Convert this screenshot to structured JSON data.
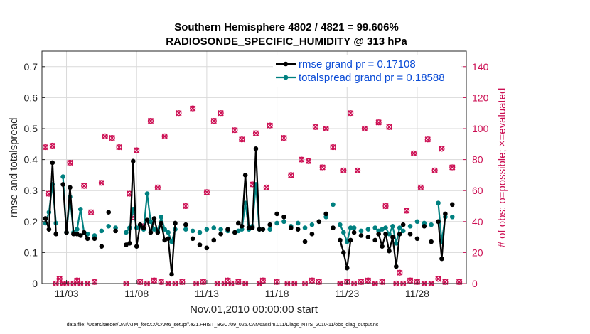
{
  "chart_data": {
    "type": "line",
    "title_line1": "Southern Hemisphere 4802 / 4821 = 99.606%",
    "title_line2": "RADIOSONDE_SPECIFIC_HUMIDITY @ 313 hPa",
    "xlabel": "Nov.01,2010 00:00:00 start",
    "ylabel_left": "rmse and totalspread",
    "ylabel_right": "# of obs: o=possible; ×=evaluated",
    "footnote": "data file: /Users/raeder/DAI/ATM_forcXX/CAM6_setup/f.e21.FHIST_BGC.f09_025.CAM6assim.011/Diags_NTrS_2010-11/obs_diag_output.nc",
    "x_range": [
      1.25,
      31.5
    ],
    "x_ticks": [
      {
        "value": 3,
        "label": "11/03"
      },
      {
        "value": 8,
        "label": "11/08"
      },
      {
        "value": 13,
        "label": "11/13"
      },
      {
        "value": 18,
        "label": "11/18"
      },
      {
        "value": 23,
        "label": "11/23"
      },
      {
        "value": 28,
        "label": "11/28"
      }
    ],
    "y_left": {
      "range": [
        0,
        0.75
      ],
      "ticks": [
        "0",
        "0.1",
        "0.2",
        "0.3",
        "0.4",
        "0.5",
        "0.6",
        "0.7"
      ],
      "tick_values": [
        0,
        0.1,
        0.2,
        0.3,
        0.4,
        0.5,
        0.6,
        0.7
      ]
    },
    "y_right": {
      "range": [
        0,
        150
      ],
      "ticks": [
        "0",
        "20",
        "40",
        "60",
        "80",
        "100",
        "120",
        "140"
      ],
      "tick_values": [
        0,
        20,
        40,
        60,
        80,
        100,
        120,
        140
      ]
    },
    "legend": {
      "placement": "top-right",
      "entries": [
        {
          "label": "rmse grand pr = 0.17108",
          "color": "#000000"
        },
        {
          "label": "totalspread grand pr = 0.18588",
          "color": "#008080"
        }
      ]
    },
    "series": [
      {
        "name": "rmse",
        "color": "#000000",
        "points": [
          [
            1.5,
            0.21
          ],
          [
            1.75,
            0.175
          ],
          [
            2.0,
            0.39
          ],
          [
            2.25,
            0.16
          ],
          [
            2.75,
            0.32
          ],
          [
            3.0,
            0.165
          ],
          [
            3.25,
            0.31
          ],
          [
            3.5,
            0.16
          ],
          [
            3.75,
            0.16
          ],
          [
            4.0,
            0.155
          ],
          [
            4.25,
            0.165
          ],
          [
            4.5,
            0.145
          ],
          [
            5.0,
            0.145
          ],
          [
            7.25,
            0.125
          ],
          [
            7.5,
            0.13
          ],
          [
            7.75,
            0.395
          ],
          [
            8.0,
            0.12
          ],
          [
            8.25,
            0.19
          ],
          [
            8.5,
            0.18
          ],
          [
            8.75,
            0.205
          ],
          [
            9.0,
            0.165
          ],
          [
            9.25,
            0.21
          ],
          [
            9.5,
            0.165
          ],
          [
            9.75,
            0.195
          ],
          [
            10.0,
            0.14
          ],
          [
            10.25,
            0.145
          ],
          [
            10.5,
            0.03
          ],
          [
            10.75,
            0.195
          ],
          [
            15.25,
            0.195
          ],
          [
            15.5,
            0.185
          ],
          [
            15.75,
            0.35
          ],
          [
            16.0,
            0.18
          ],
          [
            16.25,
            0.18
          ],
          [
            16.5,
            0.435
          ],
          [
            16.75,
            0.175
          ],
          [
            17.0,
            0.175
          ],
          [
            22.5,
            0.14
          ],
          [
            22.75,
            0.1
          ],
          [
            23.0,
            0.05
          ],
          [
            23.25,
            0.14
          ],
          [
            25.25,
            0.16
          ],
          [
            25.5,
            0.12
          ],
          [
            25.75,
            0.16
          ],
          [
            26.0,
            0.105
          ],
          [
            26.25,
            0.15
          ],
          [
            26.5,
            0.055
          ],
          [
            26.75,
            0.16
          ],
          [
            29.5,
            0.2
          ],
          [
            29.75,
            0.08
          ],
          [
            30.0,
            0.225
          ]
        ],
        "markers_only": [
          [
            5.5,
            0.12
          ],
          [
            6.0,
            0.23
          ],
          [
            6.5,
            0.17
          ],
          [
            11.5,
            0.19
          ],
          [
            12.0,
            0.145
          ],
          [
            12.5,
            0.125
          ],
          [
            13.0,
            0.115
          ],
          [
            13.5,
            0.14
          ],
          [
            14.0,
            0.16
          ],
          [
            14.5,
            0.175
          ],
          [
            15.0,
            0.165
          ],
          [
            17.5,
            0.19
          ],
          [
            18.0,
            0.225
          ],
          [
            18.5,
            0.215
          ],
          [
            19.0,
            0.18
          ],
          [
            19.5,
            0.175
          ],
          [
            20.0,
            0.135
          ],
          [
            20.5,
            0.16
          ],
          [
            21.0,
            0.2
          ],
          [
            21.5,
            0.225
          ],
          [
            22.0,
            0.18
          ],
          [
            23.5,
            0.165
          ],
          [
            24.0,
            0.155
          ],
          [
            24.5,
            0.15
          ],
          [
            25.0,
            0.14
          ],
          [
            27.0,
            0.19
          ],
          [
            27.5,
            0.16
          ],
          [
            28.0,
            0.145
          ],
          [
            28.5,
            0.185
          ],
          [
            29.0,
            0.135
          ],
          [
            30.5,
            0.255
          ]
        ]
      },
      {
        "name": "totalspread",
        "color": "#008080",
        "points": [
          [
            1.5,
            0.195
          ],
          [
            1.75,
            0.23
          ],
          [
            2.0,
            0.32
          ],
          [
            2.25,
            0.195
          ],
          [
            2.75,
            0.345
          ],
          [
            3.0,
            0.165
          ],
          [
            3.25,
            0.28
          ],
          [
            3.5,
            0.165
          ],
          [
            3.75,
            0.175
          ],
          [
            4.0,
            0.24
          ],
          [
            4.25,
            0.165
          ],
          [
            4.5,
            0.16
          ],
          [
            5.0,
            0.155
          ],
          [
            7.25,
            0.165
          ],
          [
            7.5,
            0.18
          ],
          [
            7.75,
            0.24
          ],
          [
            8.0,
            0.18
          ],
          [
            8.25,
            0.185
          ],
          [
            8.5,
            0.175
          ],
          [
            8.75,
            0.29
          ],
          [
            9.0,
            0.2
          ],
          [
            9.25,
            0.175
          ],
          [
            9.5,
            0.17
          ],
          [
            9.75,
            0.215
          ],
          [
            10.0,
            0.175
          ],
          [
            10.25,
            0.165
          ],
          [
            10.5,
            0.135
          ],
          [
            10.75,
            0.175
          ],
          [
            15.25,
            0.17
          ],
          [
            15.5,
            0.175
          ],
          [
            15.75,
            0.26
          ],
          [
            16.0,
            0.175
          ],
          [
            16.25,
            0.185
          ],
          [
            16.5,
            0.32
          ],
          [
            16.75,
            0.175
          ],
          [
            17.0,
            0.175
          ],
          [
            22.5,
            0.19
          ],
          [
            22.75,
            0.165
          ],
          [
            23.0,
            0.135
          ],
          [
            23.25,
            0.18
          ],
          [
            25.25,
            0.17
          ],
          [
            25.5,
            0.175
          ],
          [
            25.75,
            0.18
          ],
          [
            26.0,
            0.16
          ],
          [
            26.25,
            0.185
          ],
          [
            26.5,
            0.13
          ],
          [
            26.75,
            0.18
          ],
          [
            29.5,
            0.26
          ],
          [
            29.75,
            0.135
          ],
          [
            30.0,
            0.215
          ]
        ],
        "markers_only": [
          [
            5.5,
            0.17
          ],
          [
            6.0,
            0.185
          ],
          [
            6.5,
            0.18
          ],
          [
            11.5,
            0.175
          ],
          [
            12.0,
            0.17
          ],
          [
            12.5,
            0.165
          ],
          [
            13.0,
            0.175
          ],
          [
            13.5,
            0.18
          ],
          [
            14.0,
            0.175
          ],
          [
            14.5,
            0.17
          ],
          [
            15.0,
            0.165
          ],
          [
            17.5,
            0.175
          ],
          [
            18.0,
            0.195
          ],
          [
            18.5,
            0.2
          ],
          [
            19.0,
            0.185
          ],
          [
            19.5,
            0.195
          ],
          [
            20.0,
            0.18
          ],
          [
            20.5,
            0.19
          ],
          [
            21.0,
            0.2
          ],
          [
            21.5,
            0.215
          ],
          [
            22.0,
            0.255
          ],
          [
            23.5,
            0.18
          ],
          [
            24.0,
            0.17
          ],
          [
            24.5,
            0.175
          ],
          [
            25.0,
            0.18
          ],
          [
            27.0,
            0.17
          ],
          [
            27.5,
            0.185
          ],
          [
            28.0,
            0.2
          ],
          [
            28.5,
            0.195
          ],
          [
            29.0,
            0.19
          ],
          [
            30.5,
            0.215
          ]
        ]
      },
      {
        "name": "obs_possible",
        "color": "#cc0f53",
        "axis": "right",
        "marker": "circle",
        "points": [
          [
            1.5,
            88
          ],
          [
            1.75,
            58
          ],
          [
            2.0,
            89
          ],
          [
            2.25,
            0
          ],
          [
            2.5,
            3
          ],
          [
            2.75,
            0
          ],
          [
            3.0,
            0
          ],
          [
            3.25,
            78
          ],
          [
            3.5,
            0
          ],
          [
            3.75,
            2
          ],
          [
            4.0,
            0
          ],
          [
            4.25,
            63
          ],
          [
            4.5,
            0
          ],
          [
            4.75,
            46
          ],
          [
            5.0,
            1
          ],
          [
            5.5,
            65
          ],
          [
            5.75,
            95
          ],
          [
            6.25,
            94
          ],
          [
            6.75,
            88
          ],
          [
            7.25,
            0
          ],
          [
            7.5,
            58
          ],
          [
            7.75,
            43
          ],
          [
            8.0,
            86
          ],
          [
            8.25,
            1
          ],
          [
            8.5,
            37
          ],
          [
            8.75,
            0
          ],
          [
            9.0,
            105
          ],
          [
            9.25,
            2
          ],
          [
            9.5,
            62
          ],
          [
            9.75,
            1
          ],
          [
            10.0,
            95
          ],
          [
            10.25,
            0
          ],
          [
            10.75,
            0
          ],
          [
            11.0,
            110
          ],
          [
            11.25,
            1
          ],
          [
            11.5,
            50
          ],
          [
            12.0,
            113
          ],
          [
            12.25,
            0
          ],
          [
            12.75,
            1
          ],
          [
            13.0,
            59
          ],
          [
            13.5,
            105
          ],
          [
            13.75,
            0
          ],
          [
            14.0,
            110
          ],
          [
            14.25,
            0
          ],
          [
            14.5,
            2
          ],
          [
            14.75,
            0
          ],
          [
            15.0,
            99
          ],
          [
            15.25,
            1
          ],
          [
            15.5,
            93
          ],
          [
            15.75,
            0
          ],
          [
            16.25,
            64
          ],
          [
            16.5,
            97
          ],
          [
            16.75,
            0
          ],
          [
            17.0,
            2
          ],
          [
            17.25,
            62
          ],
          [
            17.5,
            102
          ],
          [
            18.0,
            1
          ],
          [
            18.5,
            94
          ],
          [
            18.75,
            0
          ],
          [
            19.0,
            70
          ],
          [
            19.25,
            0
          ],
          [
            19.75,
            80
          ],
          [
            20.0,
            0
          ],
          [
            20.25,
            79
          ],
          [
            20.5,
            2
          ],
          [
            20.75,
            101
          ],
          [
            21.0,
            1
          ],
          [
            21.25,
            75
          ],
          [
            21.5,
            100
          ],
          [
            22.0,
            88
          ],
          [
            22.5,
            0
          ],
          [
            22.75,
            73
          ],
          [
            23.0,
            1
          ],
          [
            23.25,
            110
          ],
          [
            23.5,
            0
          ],
          [
            23.75,
            73
          ],
          [
            24.0,
            1
          ],
          [
            24.25,
            100
          ],
          [
            24.5,
            2
          ],
          [
            25.0,
            0
          ],
          [
            25.25,
            104
          ],
          [
            25.5,
            1
          ],
          [
            25.75,
            50
          ],
          [
            26.0,
            101
          ],
          [
            26.5,
            0
          ],
          [
            26.75,
            7
          ],
          [
            27.0,
            0
          ],
          [
            27.25,
            47
          ],
          [
            27.5,
            2
          ],
          [
            27.75,
            84
          ],
          [
            28.0,
            1
          ],
          [
            28.25,
            62
          ],
          [
            28.5,
            0
          ],
          [
            28.75,
            93
          ],
          [
            29.0,
            0
          ],
          [
            29.25,
            73
          ],
          [
            29.5,
            3
          ],
          [
            29.75,
            87
          ],
          [
            30.0,
            1
          ],
          [
            30.5,
            75
          ],
          [
            31.0,
            1
          ]
        ]
      }
    ]
  }
}
